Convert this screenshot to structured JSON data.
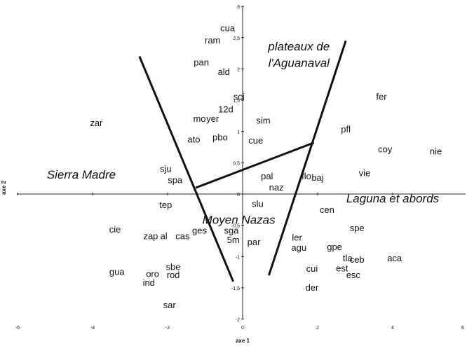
{
  "chart_data": {
    "type": "scatter",
    "xlabel": "axe 1",
    "ylabel": "axe 2",
    "xlim": [
      -6,
      6
    ],
    "ylim": [
      -2,
      3
    ],
    "x_ticks": [
      "-6",
      "-4",
      "-2",
      "0",
      "2",
      "4",
      "6"
    ],
    "y_ticks": [
      "-2",
      "-1,5",
      "-1",
      "-0,5",
      "0",
      "0,5",
      "1",
      "1,5",
      "2",
      "2,5",
      "3"
    ],
    "grid": false,
    "points": [
      {
        "label": "cua",
        "x": -0.4,
        "y": 2.65
      },
      {
        "label": "ram",
        "x": -0.8,
        "y": 2.45
      },
      {
        "label": "pan",
        "x": -1.1,
        "y": 2.1
      },
      {
        "label": "ald",
        "x": -0.5,
        "y": 1.95
      },
      {
        "label": "sci",
        "x": -0.1,
        "y": 1.55
      },
      {
        "label": "12d",
        "x": -0.45,
        "y": 1.35
      },
      {
        "label": "mo",
        "x": -1.15,
        "y": 1.2
      },
      {
        "label": "yer",
        "x": -0.8,
        "y": 1.2
      },
      {
        "label": "sim",
        "x": 0.55,
        "y": 1.17
      },
      {
        "label": "zar",
        "x": -3.9,
        "y": 1.13
      },
      {
        "label": "fer",
        "x": 3.7,
        "y": 1.55
      },
      {
        "label": "pfl",
        "x": 2.75,
        "y": 1.03
      },
      {
        "label": "ato",
        "x": -1.3,
        "y": 0.87
      },
      {
        "label": "pbo",
        "x": -0.6,
        "y": 0.9
      },
      {
        "label": "cue",
        "x": 0.35,
        "y": 0.85
      },
      {
        "label": "coy",
        "x": 3.8,
        "y": 0.71
      },
      {
        "label": "nie",
        "x": 5.15,
        "y": 0.68
      },
      {
        "label": "sju",
        "x": -2.05,
        "y": 0.4
      },
      {
        "label": "vie",
        "x": 3.25,
        "y": 0.33
      },
      {
        "label": "pal",
        "x": 0.65,
        "y": 0.28
      },
      {
        "label": "flo",
        "x": 1.7,
        "y": 0.28
      },
      {
        "label": "baj",
        "x": 2.0,
        "y": 0.26
      },
      {
        "label": "spa",
        "x": -1.8,
        "y": 0.22
      },
      {
        "label": "naz",
        "x": 0.9,
        "y": 0.1
      },
      {
        "label": "tep",
        "x": -2.05,
        "y": -0.18
      },
      {
        "label": "slu",
        "x": 0.4,
        "y": -0.16
      },
      {
        "label": "cen",
        "x": 2.25,
        "y": -0.26
      },
      {
        "label": "spe",
        "x": 3.05,
        "y": -0.55
      },
      {
        "label": "cie",
        "x": -3.4,
        "y": -0.57
      },
      {
        "label": "ges",
        "x": -1.15,
        "y": -0.59
      },
      {
        "label": "sga",
        "x": -0.3,
        "y": -0.59
      },
      {
        "label": "zap",
        "x": -2.45,
        "y": -0.68
      },
      {
        "label": "al",
        "x": -2.1,
        "y": -0.68
      },
      {
        "label": "cas",
        "x": -1.6,
        "y": -0.68
      },
      {
        "label": "ler",
        "x": 1.45,
        "y": -0.7
      },
      {
        "label": "5m",
        "x": -0.25,
        "y": -0.74
      },
      {
        "label": "par",
        "x": 0.3,
        "y": -0.77
      },
      {
        "label": "agu",
        "x": 1.5,
        "y": -0.86
      },
      {
        "label": "gpe",
        "x": 2.45,
        "y": -0.85
      },
      {
        "label": "tla",
        "x": 2.8,
        "y": -1.03
      },
      {
        "label": "ceb",
        "x": 3.05,
        "y": -1.05
      },
      {
        "label": "aca",
        "x": 4.05,
        "y": -1.03
      },
      {
        "label": "sbe",
        "x": -1.85,
        "y": -1.17
      },
      {
        "label": "cui",
        "x": 1.85,
        "y": -1.2
      },
      {
        "label": "est",
        "x": 2.65,
        "y": -1.19
      },
      {
        "label": "oro",
        "x": -2.4,
        "y": -1.28
      },
      {
        "label": "rod",
        "x": -1.85,
        "y": -1.3
      },
      {
        "label": "gua",
        "x": -3.35,
        "y": -1.25
      },
      {
        "label": "esc",
        "x": 2.95,
        "y": -1.3
      },
      {
        "label": "ind",
        "x": -2.5,
        "y": -1.42
      },
      {
        "label": "der",
        "x": 1.85,
        "y": -1.5
      },
      {
        "label": "sar",
        "x": -1.95,
        "y": -1.78
      }
    ],
    "annotations": [
      {
        "text": "plateaux de",
        "x": 1.5,
        "y": 2.35
      },
      {
        "text": "l'Aguanaval",
        "x": 1.5,
        "y": 2.09
      },
      {
        "text": "Sierra Madre",
        "x": -4.3,
        "y": 0.3
      },
      {
        "text": "Laguna et abords",
        "x": 4.0,
        "y": -0.08
      },
      {
        "text": "Moyen Nazas",
        "x": -0.1,
        "y": -0.42
      }
    ],
    "boundary_lines": [
      {
        "name": "left-v",
        "points": [
          [
            -2.75,
            2.2
          ],
          [
            -0.25,
            -1.4
          ]
        ]
      },
      {
        "name": "right-v",
        "points": [
          [
            0.7,
            -1.3
          ],
          [
            2.75,
            2.45
          ]
        ]
      },
      {
        "name": "bridge",
        "points": [
          [
            -1.25,
            0.1
          ],
          [
            1.9,
            0.82
          ]
        ]
      }
    ]
  }
}
